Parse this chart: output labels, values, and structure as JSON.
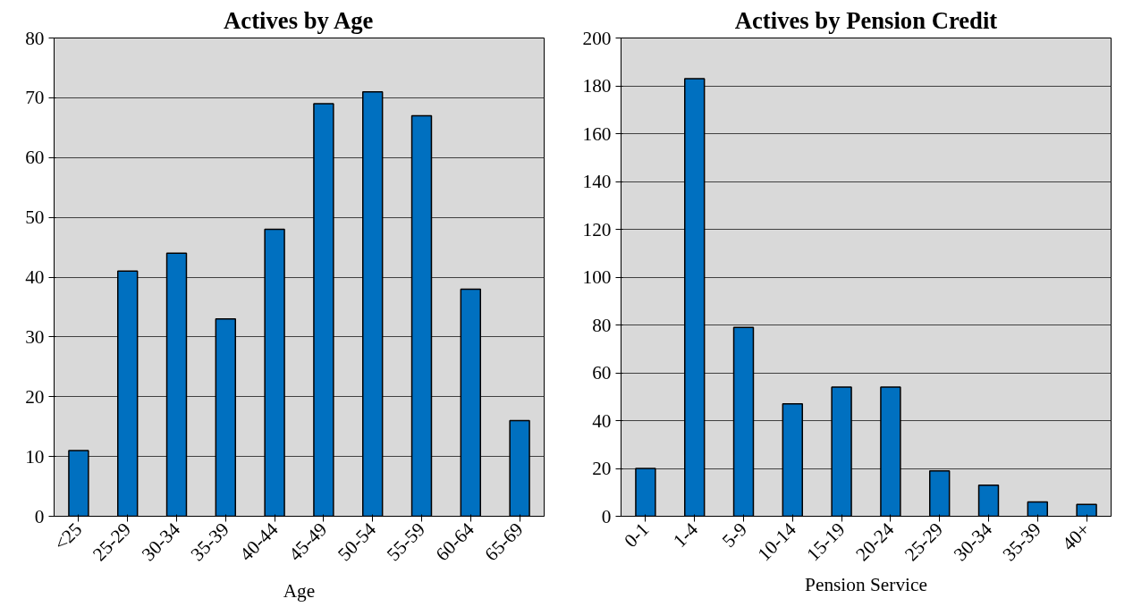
{
  "chart_data": [
    {
      "type": "bar",
      "title": "Actives by Age",
      "xlabel": "Age",
      "categories": [
        "<25",
        "25-29",
        "30-34",
        "35-39",
        "40-44",
        "45-49",
        "50-54",
        "55-59",
        "60-64",
        "65-69"
      ],
      "series": [
        {
          "color": "#0070c0",
          "values": [
            11,
            41,
            44,
            33,
            48,
            69,
            71,
            67,
            38,
            16
          ]
        }
      ],
      "ylim": [
        0,
        80
      ],
      "yticks": [
        0,
        10,
        20,
        30,
        40,
        50,
        60,
        70,
        80
      ],
      "grid": "y"
    },
    {
      "type": "bar",
      "title": "Actives by Pension Credit",
      "xlabel": "Pension Service",
      "categories": [
        "0-1",
        "1-4",
        "5-9",
        "10-14",
        "15-19",
        "20-24",
        "25-29",
        "30-34",
        "35-39",
        "40+"
      ],
      "series": [
        {
          "color": "#0070c0",
          "values": [
            20,
            183,
            79,
            47,
            54,
            54,
            19,
            13,
            6,
            5
          ]
        }
      ],
      "ylim": [
        0,
        200
      ],
      "yticks": [
        0,
        20,
        40,
        60,
        80,
        100,
        120,
        140,
        160,
        180,
        200
      ],
      "grid": "y"
    }
  ]
}
